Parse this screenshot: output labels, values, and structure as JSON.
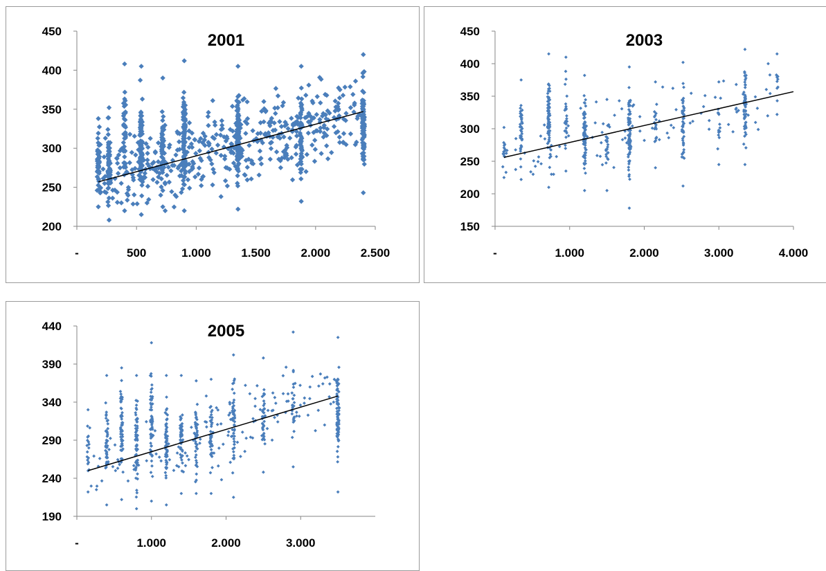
{
  "colors": {
    "marker": "#4a7ebb",
    "trendline": "#000000",
    "axis": "#868686",
    "border": "#9a9a9a"
  },
  "chart_data": [
    {
      "type": "scatter",
      "title": "2001",
      "xlabel": "",
      "ylabel": "",
      "xlim": [
        0,
        2500
      ],
      "ylim": [
        200,
        450
      ],
      "xticks": [
        0,
        500,
        1000,
        1500,
        2000,
        2500
      ],
      "xtick_labels": [
        "-",
        "500",
        "1.000",
        "1.500",
        "2.000",
        "2.500"
      ],
      "yticks": [
        200,
        250,
        300,
        350,
        400,
        450
      ],
      "ytick_labels": [
        "200",
        "250",
        "300",
        "350",
        "400",
        "450"
      ],
      "grid": false,
      "legend": "none",
      "trendline": {
        "x": [
          180,
          2400
        ],
        "y": [
          257,
          347
        ]
      },
      "marker_size": 2.6,
      "columns": [
        {
          "x": 180,
          "y_min": 225,
          "y_max": 338,
          "n": 45
        },
        {
          "x": 270,
          "y_min": 208,
          "y_max": 352,
          "n": 60
        },
        {
          "x": 400,
          "y_min": 220,
          "y_max": 408,
          "n": 40
        },
        {
          "x": 540,
          "y_min": 215,
          "y_max": 405,
          "n": 90
        },
        {
          "x": 720,
          "y_min": 225,
          "y_max": 390,
          "n": 40
        },
        {
          "x": 900,
          "y_min": 220,
          "y_max": 412,
          "n": 90
        },
        {
          "x": 1350,
          "y_min": 222,
          "y_max": 405,
          "n": 95
        },
        {
          "x": 1880,
          "y_min": 232,
          "y_max": 405,
          "n": 50
        },
        {
          "x": 2400,
          "y_min": 243,
          "y_max": 420,
          "n": 90
        }
      ],
      "scatter_regions": [
        {
          "x_min": 180,
          "x_max": 2400,
          "y_min": 220,
          "y_max": 420,
          "n": 480
        }
      ]
    },
    {
      "type": "scatter",
      "title": "2003",
      "xlabel": "",
      "ylabel": "",
      "xlim": [
        0,
        4000
      ],
      "ylim": [
        150,
        450
      ],
      "xticks": [
        0,
        1000,
        2000,
        3000,
        4000
      ],
      "xtick_labels": [
        "-",
        "1.000",
        "2.000",
        "3.000",
        "4.000"
      ],
      "yticks": [
        150,
        200,
        250,
        300,
        350,
        400,
        450
      ],
      "ytick_labels": [
        "150",
        "200",
        "250",
        "300",
        "350",
        "400",
        "450"
      ],
      "grid": false,
      "legend": "none",
      "trendline": {
        "x": [
          120,
          4000
        ],
        "y": [
          256,
          357
        ]
      },
      "marker_size": 1.7,
      "columns": [
        {
          "x": 120,
          "y_min": 225,
          "y_max": 302,
          "n": 14
        },
        {
          "x": 350,
          "y_min": 222,
          "y_max": 375,
          "n": 35
        },
        {
          "x": 720,
          "y_min": 210,
          "y_max": 415,
          "n": 70
        },
        {
          "x": 950,
          "y_min": 235,
          "y_max": 410,
          "n": 25
        },
        {
          "x": 1200,
          "y_min": 205,
          "y_max": 382,
          "n": 70
        },
        {
          "x": 1500,
          "y_min": 205,
          "y_max": 345,
          "n": 18
        },
        {
          "x": 1800,
          "y_min": 178,
          "y_max": 395,
          "n": 75
        },
        {
          "x": 2150,
          "y_min": 240,
          "y_max": 372,
          "n": 15
        },
        {
          "x": 2520,
          "y_min": 212,
          "y_max": 402,
          "n": 45
        },
        {
          "x": 3000,
          "y_min": 245,
          "y_max": 372,
          "n": 12
        },
        {
          "x": 3350,
          "y_min": 245,
          "y_max": 422,
          "n": 55
        },
        {
          "x": 3780,
          "y_min": 322,
          "y_max": 415,
          "n": 8
        }
      ],
      "scatter_regions": [
        {
          "x_min": 120,
          "x_max": 3800,
          "y_min": 230,
          "y_max": 400,
          "n": 110
        }
      ]
    },
    {
      "type": "scatter",
      "title": "2005",
      "xlabel": "",
      "ylabel": "",
      "xlim": [
        0,
        4000
      ],
      "ylim": [
        190,
        440
      ],
      "xticks": [
        0,
        1000,
        2000,
        3000
      ],
      "xtick_labels": [
        "-",
        "1.000",
        "2.000",
        "3.000"
      ],
      "yticks": [
        190,
        240,
        290,
        340,
        390,
        440
      ],
      "ytick_labels": [
        "190",
        "240",
        "290",
        "340",
        "390",
        "440"
      ],
      "grid": false,
      "legend": "none",
      "trendline": {
        "x": [
          150,
          3500
        ],
        "y": [
          250,
          348
        ]
      },
      "marker_size": 1.7,
      "columns": [
        {
          "x": 150,
          "y_min": 222,
          "y_max": 330,
          "n": 14
        },
        {
          "x": 400,
          "y_min": 205,
          "y_max": 375,
          "n": 40
        },
        {
          "x": 600,
          "y_min": 212,
          "y_max": 385,
          "n": 55
        },
        {
          "x": 800,
          "y_min": 200,
          "y_max": 375,
          "n": 60
        },
        {
          "x": 1000,
          "y_min": 210,
          "y_max": 418,
          "n": 55
        },
        {
          "x": 1200,
          "y_min": 205,
          "y_max": 375,
          "n": 60
        },
        {
          "x": 1400,
          "y_min": 220,
          "y_max": 375,
          "n": 45
        },
        {
          "x": 1600,
          "y_min": 220,
          "y_max": 368,
          "n": 40
        },
        {
          "x": 1800,
          "y_min": 220,
          "y_max": 370,
          "n": 35
        },
        {
          "x": 2100,
          "y_min": 215,
          "y_max": 402,
          "n": 45
        },
        {
          "x": 2500,
          "y_min": 248,
          "y_max": 398,
          "n": 30
        },
        {
          "x": 2900,
          "y_min": 255,
          "y_max": 432,
          "n": 25
        },
        {
          "x": 3500,
          "y_min": 222,
          "y_max": 425,
          "n": 80
        }
      ],
      "scatter_regions": [
        {
          "x_min": 150,
          "x_max": 3500,
          "y_min": 225,
          "y_max": 400,
          "n": 160
        }
      ]
    }
  ]
}
